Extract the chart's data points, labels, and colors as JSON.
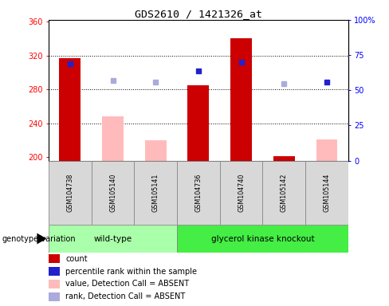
{
  "title": "GDS2610 / 1421326_at",
  "samples": [
    "GSM104738",
    "GSM105140",
    "GSM105141",
    "GSM104736",
    "GSM104740",
    "GSM105142",
    "GSM105144"
  ],
  "groups": {
    "wild-type": [
      0,
      1,
      2
    ],
    "glycerol kinase knockout": [
      3,
      4,
      5,
      6
    ]
  },
  "bar_values": [
    317,
    248,
    220,
    285,
    340,
    201,
    221
  ],
  "bar_colors": [
    "#cc0000",
    "#ffbbbb",
    "#ffbbbb",
    "#cc0000",
    "#cc0000",
    "#cc0000",
    "#ffbbbb"
  ],
  "rank_values": [
    310,
    291,
    289,
    302,
    312,
    287,
    289
  ],
  "rank_colors": [
    "#2222cc",
    "#aaaadd",
    "#aaaadd",
    "#2222cc",
    "#2222cc",
    "#aaaadd",
    "#2222cc"
  ],
  "ylim_left": [
    196,
    362
  ],
  "ylim_right": [
    0,
    100
  ],
  "yticks_left": [
    200,
    240,
    280,
    320,
    360
  ],
  "yticks_right": [
    0,
    25,
    50,
    75,
    100
  ],
  "ytick_labels_right": [
    "0",
    "25",
    "50",
    "75",
    "100%"
  ],
  "group_wt_color": "#aaffaa",
  "group_gk_color": "#44ee44",
  "legend_items": [
    {
      "label": "count",
      "color": "#cc0000"
    },
    {
      "label": "percentile rank within the sample",
      "color": "#2222cc"
    },
    {
      "label": "value, Detection Call = ABSENT",
      "color": "#ffbbbb"
    },
    {
      "label": "rank, Detection Call = ABSENT",
      "color": "#aaaadd"
    }
  ],
  "baseline": 196,
  "dotted_yticks": [
    240,
    280,
    320
  ]
}
